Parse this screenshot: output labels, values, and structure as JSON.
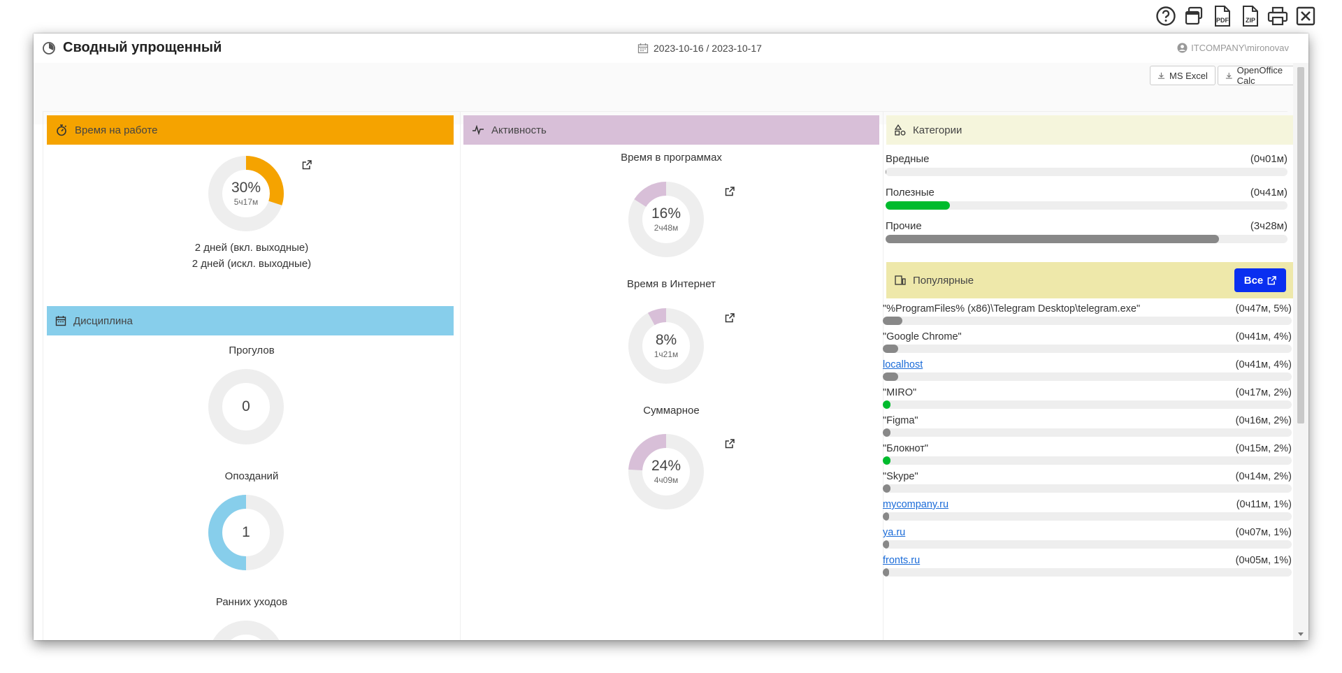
{
  "top_icons": [
    {
      "name": "help-icon"
    },
    {
      "name": "windows-icon"
    },
    {
      "name": "pdf-icon",
      "label": "PDF"
    },
    {
      "name": "zip-icon",
      "label": "ZIP"
    },
    {
      "name": "print-icon"
    },
    {
      "name": "close-icon"
    }
  ],
  "window": {
    "title": "Сводный упрощенный",
    "date_range": "2023-10-16 / 2023-10-17",
    "user": "ITCOMPANY\\mironovav"
  },
  "toolbar": {
    "excel_label": "MS Excel",
    "calc_label": "OpenOffice Calc"
  },
  "work_time": {
    "title": "Время на работе",
    "color": "#f5a300",
    "percent": "30%",
    "duration": "5ч17м",
    "fraction": 0.3,
    "days_incl": "2 дней (вкл. выходные)",
    "days_excl": "2 дней (искл. выходные)"
  },
  "discipline": {
    "title": "Дисциплина",
    "color": "#87ceeb",
    "absences_label": "Прогулов",
    "absences_value": "0",
    "late_label": "Опозданий",
    "late_value": "1",
    "early_label": "Ранних уходов"
  },
  "activity": {
    "title": "Активность",
    "color": "#d8bfd8",
    "programs_label": "Время в программах",
    "programs_percent": "16%",
    "programs_duration": "2ч48м",
    "programs_fraction": 0.16,
    "internet_label": "Время в Интернет",
    "internet_percent": "8%",
    "internet_duration": "1ч21м",
    "internet_fraction": 0.08,
    "total_label": "Суммарное",
    "total_percent": "24%",
    "total_duration": "4ч09м",
    "total_fraction": 0.24
  },
  "categories": {
    "title": "Категории",
    "header_color": "#f5f5dc",
    "items": [
      {
        "label": "Вредные",
        "value": "(0ч01м)",
        "fraction": 0.002,
        "color": "#888888"
      },
      {
        "label": "Полезные",
        "value": "(0ч41м)",
        "fraction": 0.16,
        "color": "#00bb2d"
      },
      {
        "label": "Прочие",
        "value": "(3ч28м)",
        "fraction": 0.83,
        "color": "#888888"
      }
    ]
  },
  "popular": {
    "title": "Популярные",
    "header_color": "#eee8aa",
    "all_label": "Все",
    "items": [
      {
        "label": "\"%ProgramFiles% (x86)\\Telegram Desktop\\telegram.exe\"",
        "value": "(0ч47м, 5%)",
        "fraction": 0.05,
        "color": "#888888",
        "link": false
      },
      {
        "label": "\"Google Chrome\"",
        "value": "(0ч41м, 4%)",
        "fraction": 0.04,
        "color": "#888888",
        "link": false
      },
      {
        "label": "localhost",
        "value": "(0ч41м, 4%)",
        "fraction": 0.04,
        "color": "#888888",
        "link": true
      },
      {
        "label": "\"MIRO\"",
        "value": "(0ч17м, 2%)",
        "fraction": 0.02,
        "color": "#00bb2d",
        "link": false
      },
      {
        "label": "\"Figma\"",
        "value": "(0ч16м, 2%)",
        "fraction": 0.02,
        "color": "#888888",
        "link": false
      },
      {
        "label": "\"Блокнот\"",
        "value": "(0ч15м, 2%)",
        "fraction": 0.02,
        "color": "#00bb2d",
        "link": false
      },
      {
        "label": "\"Skype\"",
        "value": "(0ч14м, 2%)",
        "fraction": 0.02,
        "color": "#888888",
        "link": false
      },
      {
        "label": "mycompany.ru",
        "value": "(0ч11м, 1%)",
        "fraction": 0.01,
        "color": "#888888",
        "link": true
      },
      {
        "label": "ya.ru",
        "value": "(0ч07м, 1%)",
        "fraction": 0.01,
        "color": "#888888",
        "link": true
      },
      {
        "label": "fronts.ru",
        "value": "(0ч05м, 1%)",
        "fraction": 0.01,
        "color": "#888888",
        "link": true
      }
    ]
  }
}
